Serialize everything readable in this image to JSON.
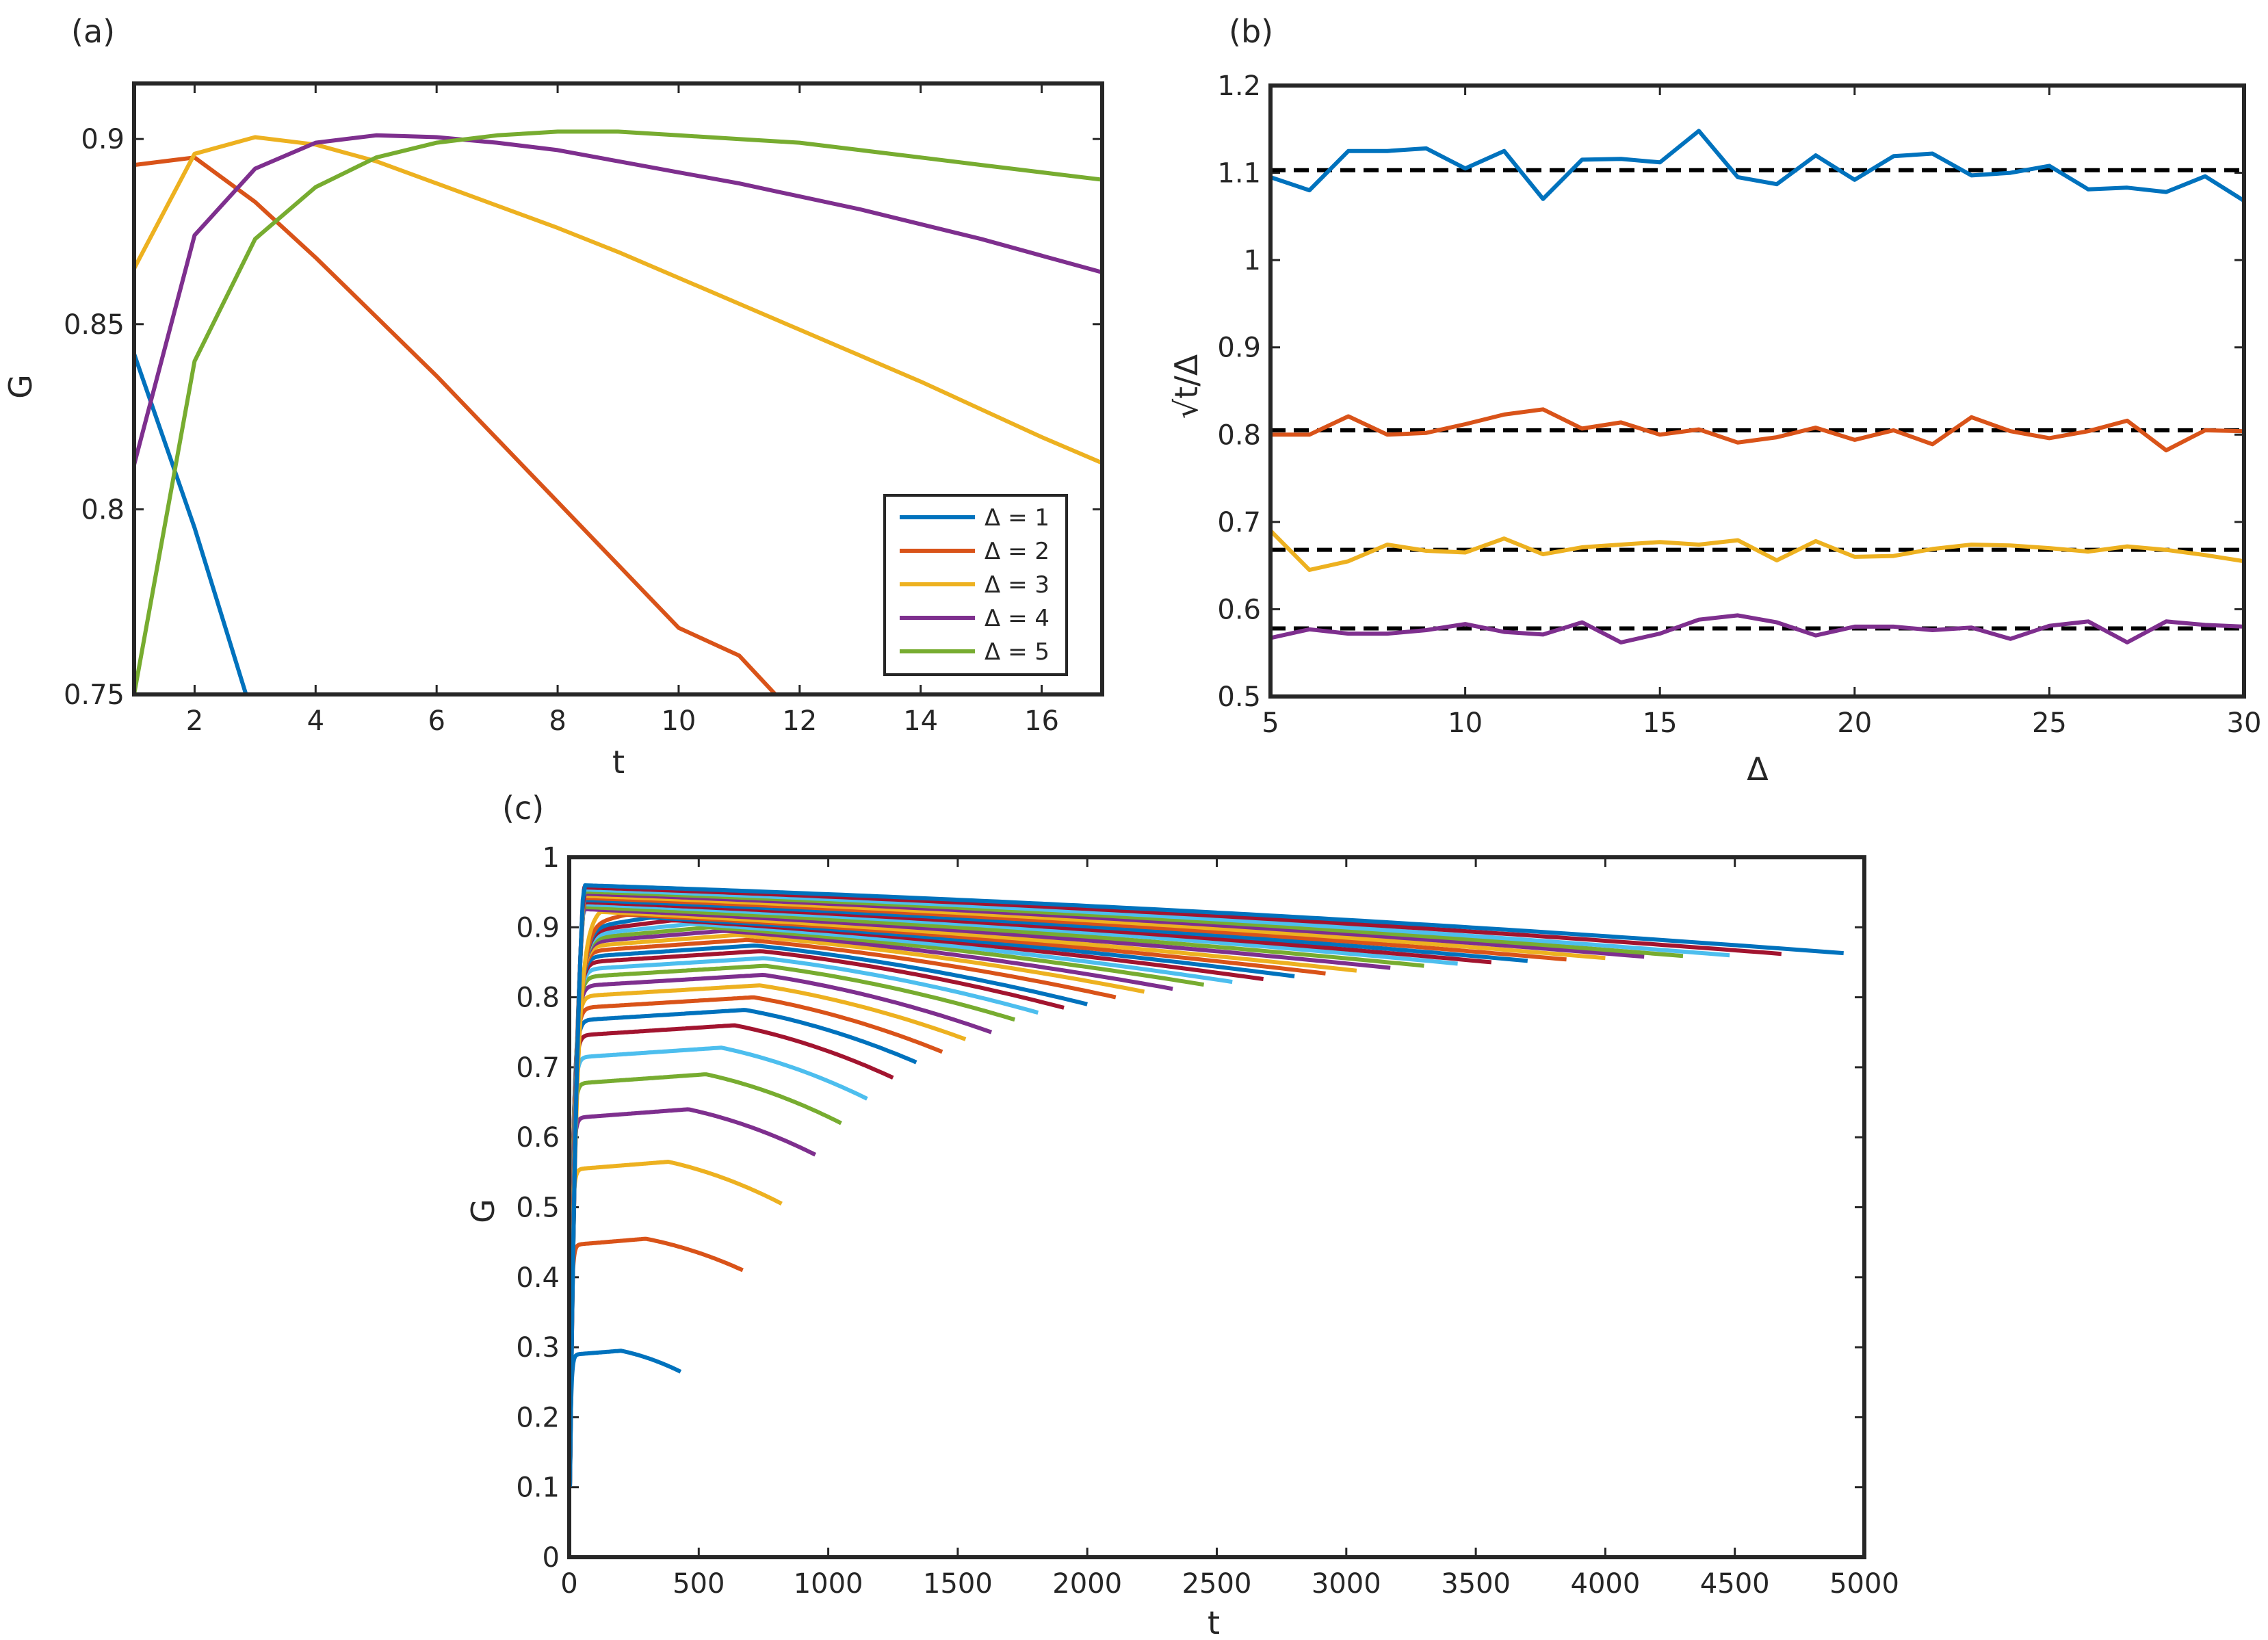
{
  "chart_data": [
    {
      "panel": "(a)",
      "type": "line",
      "xlabel": "t",
      "ylabel": "G",
      "xlim": [
        1,
        17
      ],
      "ylim": [
        0.75,
        0.915
      ],
      "xticks": [
        2,
        4,
        6,
        8,
        10,
        12,
        14,
        16
      ],
      "yticks": [
        0.75,
        0.8,
        0.85,
        0.9
      ],
      "ytick_labels": [
        "0.75",
        "0.8",
        "0.85",
        "0.9"
      ],
      "legend_position": "bottom-right",
      "series": [
        {
          "name": "Δ = 1",
          "color": "#0072BD",
          "x": [
            1,
            2,
            2.85
          ],
          "y": [
            0.842,
            0.795,
            0.75
          ]
        },
        {
          "name": "Δ = 2",
          "color": "#D95319",
          "x": [
            1,
            2,
            3,
            4,
            5,
            6,
            7,
            8,
            9,
            10,
            11,
            11.6
          ],
          "y": [
            0.893,
            0.895,
            0.883,
            0.868,
            0.852,
            0.836,
            0.819,
            0.802,
            0.785,
            0.768,
            0.7605,
            0.75
          ]
        },
        {
          "name": "Δ = 3",
          "color": "#EDB120",
          "x": [
            1,
            2,
            3,
            4,
            5,
            6,
            7,
            8,
            9,
            10,
            11,
            12,
            13,
            14,
            15,
            16,
            17
          ],
          "y": [
            0.865,
            0.896,
            0.9005,
            0.8985,
            0.894,
            0.888,
            0.882,
            0.876,
            0.8695,
            0.8625,
            0.8555,
            0.8485,
            0.8415,
            0.8345,
            0.827,
            0.8195,
            0.8125
          ]
        },
        {
          "name": "Δ = 4",
          "color": "#7E2F8E",
          "x": [
            1,
            2,
            3,
            4,
            5,
            6,
            7,
            8,
            9,
            10,
            11,
            12,
            13,
            14,
            15,
            16,
            17
          ],
          "y": [
            0.812,
            0.874,
            0.892,
            0.899,
            0.901,
            0.9005,
            0.899,
            0.897,
            0.894,
            0.891,
            0.888,
            0.8845,
            0.881,
            0.877,
            0.873,
            0.8685,
            0.864
          ]
        },
        {
          "name": "Δ = 5",
          "color": "#77AC30",
          "x": [
            1,
            2,
            3,
            4,
            5,
            6,
            7,
            8,
            9,
            10,
            11,
            12,
            13,
            14,
            15,
            16,
            17
          ],
          "y": [
            0.75,
            0.84,
            0.873,
            0.887,
            0.895,
            0.899,
            0.901,
            0.902,
            0.902,
            0.901,
            0.9,
            0.899,
            0.897,
            0.895,
            0.893,
            0.891,
            0.889
          ]
        }
      ]
    },
    {
      "panel": "(b)",
      "type": "line",
      "xlabel": "Δ",
      "ylabel": "√t/Δ",
      "xlim": [
        5,
        30
      ],
      "ylim": [
        0.5,
        1.2
      ],
      "xticks": [
        5,
        10,
        15,
        20,
        25,
        30
      ],
      "yticks": [
        0.5,
        0.6,
        0.7,
        0.8,
        0.9,
        1.0,
        1.1,
        1.2
      ],
      "ytick_labels": [
        "0.5",
        "0.6",
        "0.7",
        "0.8",
        "0.9",
        "1",
        "1.1",
        "1.2"
      ],
      "reference_lines": [
        {
          "y": 1.103,
          "style": "dashed",
          "color": "#000000"
        },
        {
          "y": 0.805,
          "style": "dashed",
          "color": "#000000"
        },
        {
          "y": 0.668,
          "style": "dashed",
          "color": "#000000"
        },
        {
          "y": 0.578,
          "style": "dashed",
          "color": "#000000"
        }
      ],
      "x": [
        5,
        6,
        7,
        8,
        9,
        10,
        11,
        12,
        13,
        14,
        15,
        16,
        17,
        18,
        19,
        20,
        21,
        22,
        23,
        24,
        25,
        26,
        27,
        28,
        29,
        30
      ],
      "series": [
        {
          "color": "#0072BD",
          "values": [
            1.095,
            1.08,
            1.125,
            1.125,
            1.128,
            1.105,
            1.125,
            1.07,
            1.115,
            1.116,
            1.112,
            1.148,
            1.095,
            1.087,
            1.12,
            1.092,
            1.119,
            1.122,
            1.097,
            1.1,
            1.108,
            1.081,
            1.083,
            1.078,
            1.096,
            1.068
          ]
        },
        {
          "color": "#D95319",
          "values": [
            0.8,
            0.8,
            0.821,
            0.8,
            0.802,
            0.812,
            0.823,
            0.829,
            0.807,
            0.814,
            0.8,
            0.806,
            0.791,
            0.797,
            0.808,
            0.794,
            0.805,
            0.789,
            0.82,
            0.804,
            0.796,
            0.804,
            0.816,
            0.782,
            0.805,
            0.804
          ]
        },
        {
          "color": "#EDB120",
          "values": [
            0.69,
            0.645,
            0.655,
            0.674,
            0.667,
            0.665,
            0.681,
            0.663,
            0.671,
            0.674,
            0.677,
            0.674,
            0.679,
            0.656,
            0.678,
            0.66,
            0.661,
            0.669,
            0.674,
            0.673,
            0.67,
            0.666,
            0.672,
            0.668,
            0.662,
            0.655
          ]
        },
        {
          "color": "#7E2F8E",
          "values": [
            0.567,
            0.577,
            0.572,
            0.572,
            0.576,
            0.583,
            0.574,
            0.571,
            0.585,
            0.562,
            0.572,
            0.588,
            0.593,
            0.585,
            0.57,
            0.58,
            0.58,
            0.576,
            0.579,
            0.566,
            0.581,
            0.586,
            0.562,
            0.586,
            0.582,
            0.58
          ]
        }
      ]
    },
    {
      "panel": "(c)",
      "type": "line",
      "xlabel": "t",
      "ylabel": "G",
      "xlim": [
        0,
        5000
      ],
      "ylim": [
        0,
        1
      ],
      "xticks": [
        0,
        500,
        1000,
        1500,
        2000,
        2500,
        3000,
        3500,
        4000,
        4500,
        5000
      ],
      "yticks": [
        0,
        0.1,
        0.2,
        0.3,
        0.4,
        0.5,
        0.6,
        0.7,
        0.8,
        0.9,
        1
      ],
      "ytick_labels": [
        "0",
        "0.1",
        "0.2",
        "0.3",
        "0.4",
        "0.5",
        "0.6",
        "0.7",
        "0.8",
        "0.9",
        "1"
      ],
      "palette": [
        "#0072BD",
        "#D95319",
        "#EDB120",
        "#7E2F8E",
        "#77AC30",
        "#4DBEEE",
        "#A2142F"
      ],
      "series_peaks": [
        0.295,
        0.455,
        0.565,
        0.64,
        0.69,
        0.728,
        0.76,
        0.782,
        0.8,
        0.817,
        0.832,
        0.845,
        0.856,
        0.866,
        0.874,
        0.882,
        0.889,
        0.895,
        0.9,
        0.905,
        0.91,
        0.914,
        0.918,
        0.922,
        0.926,
        0.929,
        0.933,
        0.936,
        0.939,
        0.942,
        0.945,
        0.948,
        0.951,
        0.954,
        0.957,
        0.96
      ],
      "series_end_t": [
        430,
        670,
        820,
        950,
        1050,
        1150,
        1250,
        1340,
        1440,
        1530,
        1630,
        1720,
        1810,
        1910,
        2000,
        2110,
        2220,
        2330,
        2450,
        2560,
        2680,
        2800,
        2920,
        3040,
        3170,
        3300,
        3430,
        3560,
        3700,
        3850,
        4000,
        4150,
        4300,
        4480,
        4680,
        4920
      ],
      "series_end_G": [
        0.265,
        0.41,
        0.505,
        0.575,
        0.62,
        0.655,
        0.685,
        0.707,
        0.722,
        0.74,
        0.75,
        0.768,
        0.778,
        0.785,
        0.79,
        0.8,
        0.808,
        0.812,
        0.818,
        0.822,
        0.826,
        0.83,
        0.834,
        0.838,
        0.842,
        0.845,
        0.848,
        0.85,
        0.852,
        0.854,
        0.856,
        0.858,
        0.859,
        0.86,
        0.862,
        0.863
      ]
    }
  ]
}
